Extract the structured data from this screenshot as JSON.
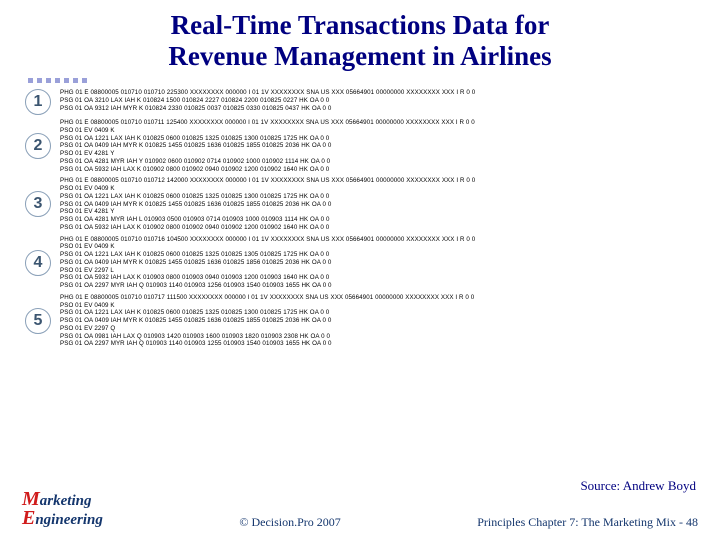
{
  "title_line1": "Real-Time Transactions Data for",
  "title_line2": "Revenue Management in Airlines",
  "blocks": [
    {
      "n": "1",
      "lines": [
        "PHG 01 E 08800005 010710 010710 225300 XXXXXXXX 000000 I 01 1V XXXXXXXX SNA US XXX 05664901 00000000 XXXXXXXX XXX I R 0 0",
        "PSG 01 OA 3210 LAX IAH K 010824 1500 010824 2227 010824 2200 010825 0227 HK OA 0 0",
        "PSG 01 OA 9312 IAH MYR K 010824 2330 010825 0037 010825 0330 010825 0437 HK OA 0 0"
      ]
    },
    {
      "n": "2",
      "lines": [
        "PHG 01 E 08800005 010710 010711 125400 XXXXXXXX 000000 I 01 1V XXXXXXXX SNA US XXX 05664901 00000000 XXXXXXXX XXX I R 0 0",
        "PSO 01 EV 0409 K",
        "PSG 01 OA 1221 LAX IAH K 010825 0600 010825 1325 010825 1300 010825 1725 HK OA 0 0",
        "PSG 01 OA 0409 IAH MYR K 010825 1455 010825 1636 010825 1855 010825 2036 HK OA 0 0",
        "PSO 01 EV 4281 Y",
        "PSG 01 OA 4281 MYR IAH Y 010902 0600 010902 0714 010902 1000 010902 1114 HK OA 0 0",
        "PSG 01 OA 5932 IAH LAX K 010902 0800 010902 0940 010902 1200 010902 1640 HK OA 0 0"
      ]
    },
    {
      "n": "3",
      "lines": [
        "PHG 01 E 08800005 010710 010712 142000 XXXXXXXX 000000 I 01 1V XXXXXXXX SNA US XXX 05664901 00000000 XXXXXXXX XXX I R 0 0",
        "PSO 01 EV 0409 K",
        "PSG 01 OA 1221 LAX IAH K 010825 0600 010825 1325 010825 1300 010825 1725 HK OA 0 0",
        "PSG 01 OA 0409 IAH MYR K 010825 1455 010825 1636 010825 1855 010825 2036 HK OA 0 0",
        "PSO 01 EV 4281 Y",
        "PSG 01 OA 4281 MYR IAH L 010903 0500 010903 0714 010903 1000 010903 1114 HK OA 0 0",
        "PSG 01 OA 5932 IAH LAX K 010902 0800 010902 0940 010902 1200 010902 1640 HK OA 0 0"
      ]
    },
    {
      "n": "4",
      "lines": [
        "PHG 01 E 08800005 010710 010716 104500 XXXXXXXX 000000 I 01 1V XXXXXXXX SNA US XXX 05664901 00000000 XXXXXXXX XXX I R 0 0",
        "PSO 01 EV 0409 K",
        "PSG 01 OA 1221 LAX IAH K 010825 0600 010825 1325 010825 1305 010825 1725 HK OA 0 0",
        "PSG 01 OA 0409 IAH MYR K 010825 1455 010825 1636 010825 1856 010825 2036 HK OA 0 0",
        "PSO 01 EV 2297 L",
        "PSG 01 OA 5932 IAH LAX K 010903 0800 010903 0940 010903 1200 010903 1640 HK OA 0 0",
        "PSG 01 OA 2297 MYR IAH Q 010903 1140 010903 1256 010903 1540 010903 1655 HK OA 0 0"
      ]
    },
    {
      "n": "5",
      "lines": [
        "PHG 01 E 08800005 010710 010717 111500 XXXXXXXX 000000 I 01 1V XXXXXXXX SNA US XXX 05664901 00000000 XXXXXXXX XXX I R 0 0",
        "PSO 01 EV 0409 K",
        "PSG 01 OA 1221 LAX IAH K 010825 0600 010825 1325 010825 1300 010825 1725 HK OA 0 0",
        "PSG 01 OA 0409 IAH MYR K 010825 1455 010825 1636 010825 1855 010825 2036 HK OA 0 0",
        "PSO 01 EV 2297 Q",
        "PSG 01 OA 0981 IAH LAX Q 010903 1420 010903 1600 010903 1820 010903 2308 HK OA 0 0",
        "PSG 01 OA 2297 MYR IAH Q 010903 1140 010903 1255 010903 1540 010903 1655 HK OA 0 0"
      ]
    }
  ],
  "source_text": "Source: Andrew Boyd",
  "logo_big": "M",
  "logo_word1_rest": "arketing",
  "logo_big2": "E",
  "logo_word2_rest": "ngineering",
  "copyright": "© Decision.Pro 2007",
  "pager": "Principles Chapter 7: The Marketing Mix - 48",
  "colors": {
    "title": "#000080",
    "footer": "#14366d",
    "red": "#d01c1c",
    "dot": "#9aa0d9"
  }
}
